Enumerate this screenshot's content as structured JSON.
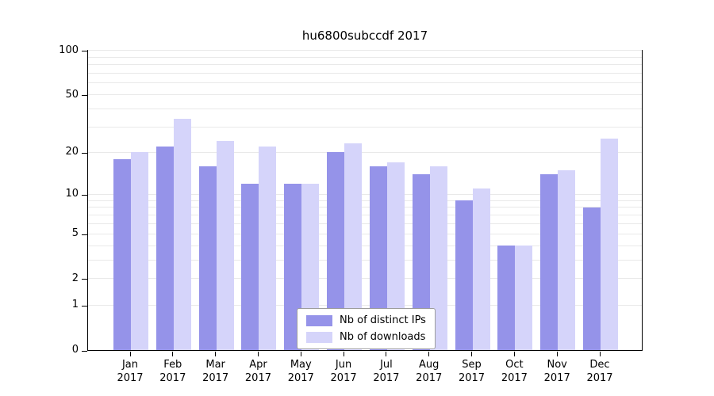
{
  "chart_data": {
    "type": "bar",
    "title": "hu6800subccdf 2017",
    "y_scale": "log1p",
    "grid": "on",
    "legend_position": "bottom-center",
    "categories": [
      "Jan",
      "Feb",
      "Mar",
      "Apr",
      "May",
      "Jun",
      "Jul",
      "Aug",
      "Sep",
      "Oct",
      "Nov",
      "Dec"
    ],
    "x_year": "2017",
    "series": [
      {
        "name": "Nb of distinct IPs",
        "color": "#9593e9",
        "values": [
          18,
          22,
          16,
          12,
          12,
          20,
          16,
          14,
          9,
          4,
          14,
          8
        ]
      },
      {
        "name": "Nb of downloads",
        "color": "#d5d4fa",
        "values": [
          20,
          34,
          24,
          22,
          12,
          23,
          17,
          16,
          11,
          4,
          15,
          25
        ]
      }
    ],
    "y_ticks": [
      0,
      1,
      2,
      5,
      10,
      20,
      50,
      100
    ],
    "gridlines": [
      1,
      2,
      3,
      4,
      5,
      6,
      7,
      8,
      9,
      10,
      20,
      30,
      40,
      50,
      60,
      70,
      80,
      90,
      100
    ],
    "ylim": [
      0,
      100
    ]
  },
  "colors": {
    "grid": "#e9e9e9",
    "axis": "#000000",
    "legend_border": "#9c9c9c",
    "background": "#ffffff"
  }
}
